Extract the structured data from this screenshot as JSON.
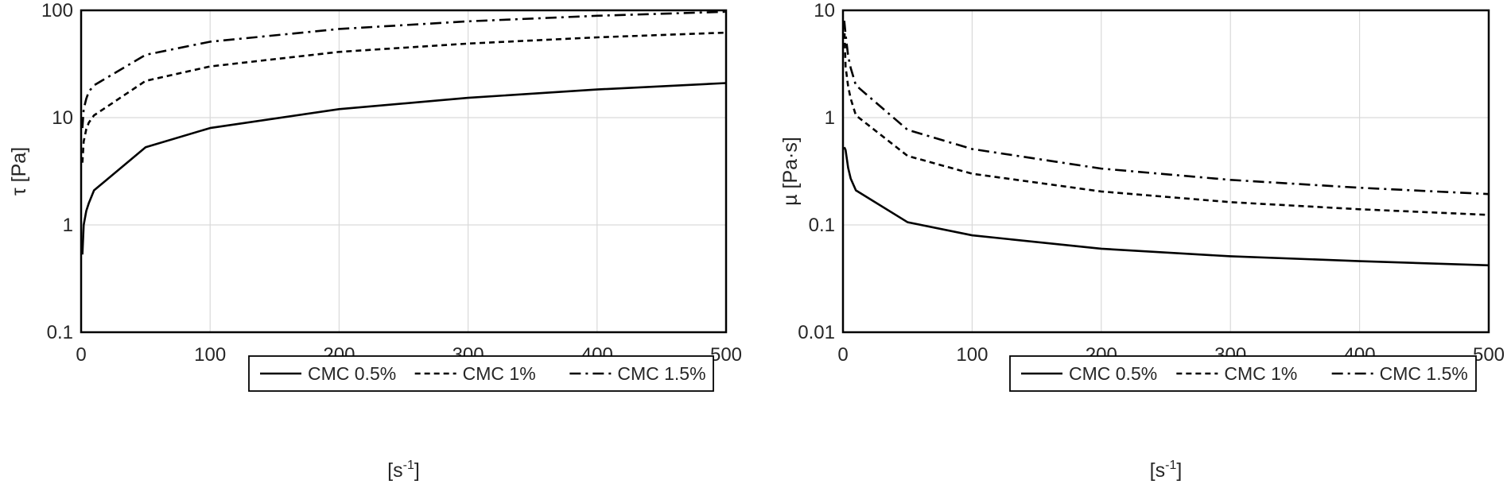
{
  "chart_data": [
    {
      "type": "line",
      "ylabel": "τ [Pa]",
      "xlabel": "[s-1]",
      "xlabel_parts": {
        "base": "[s",
        "sup": "-1",
        "tail": "]"
      },
      "y_scale": "log",
      "xlim": [
        0,
        500
      ],
      "ylim": [
        0.1,
        100
      ],
      "x_ticks": [
        "0",
        "100",
        "200",
        "300",
        "400",
        "500"
      ],
      "y_ticks": [
        "0.1",
        "1",
        "10",
        "100"
      ],
      "grid": true,
      "legend_placement": "bottom-right",
      "series": [
        {
          "name": "CMC 0.5%",
          "line_style": "solid",
          "x": [
            1,
            2,
            4,
            6,
            10,
            50,
            100,
            200,
            300,
            400,
            500
          ],
          "y": [
            0.53,
            1.0,
            1.35,
            1.6,
            2.1,
            5.3,
            8.0,
            12.0,
            15.3,
            18.3,
            21.0
          ]
        },
        {
          "name": "CMC 1%",
          "line_style": "dashed",
          "x": [
            1,
            2,
            4,
            6,
            10,
            50,
            100,
            200,
            300,
            400,
            500
          ],
          "y": [
            3.8,
            6.0,
            7.8,
            9.0,
            10.5,
            22.0,
            30.0,
            41.0,
            49.0,
            56.0,
            62.0
          ]
        },
        {
          "name": "CMC 1.5%",
          "line_style": "dash-dot",
          "x": [
            1,
            2,
            4,
            6,
            10,
            50,
            100,
            200,
            300,
            400,
            500
          ],
          "y": [
            8.0,
            12.0,
            15.0,
            17.5,
            20.0,
            38.5,
            51.0,
            67.0,
            79.0,
            89.0,
            97.0
          ]
        }
      ]
    },
    {
      "type": "line",
      "ylabel": "µ [Pa·s]",
      "xlabel": "[s-1]",
      "xlabel_parts": {
        "base": "[s",
        "sup": "-1",
        "tail": "]"
      },
      "y_scale": "log",
      "xlim": [
        0,
        500
      ],
      "ylim": [
        0.01,
        10
      ],
      "x_ticks": [
        "0",
        "100",
        "200",
        "300",
        "400",
        "500"
      ],
      "y_ticks": [
        "0.01",
        "0.1",
        "1",
        "10"
      ],
      "grid": true,
      "legend_placement": "bottom-right",
      "series": [
        {
          "name": "CMC 0.5%",
          "line_style": "solid",
          "x": [
            1,
            2,
            4,
            6,
            10,
            50,
            100,
            200,
            300,
            400,
            500
          ],
          "y": [
            0.53,
            0.5,
            0.34,
            0.27,
            0.21,
            0.106,
            0.08,
            0.06,
            0.051,
            0.046,
            0.042
          ]
        },
        {
          "name": "CMC 1%",
          "line_style": "dashed",
          "x": [
            1,
            2,
            4,
            6,
            10,
            50,
            100,
            200,
            300,
            400,
            500
          ],
          "y": [
            7.5,
            3.0,
            1.95,
            1.5,
            1.05,
            0.44,
            0.3,
            0.205,
            0.163,
            0.14,
            0.124
          ]
        },
        {
          "name": "CMC 1.5%",
          "line_style": "dash-dot",
          "x": [
            1,
            2,
            4,
            6,
            10,
            50,
            100,
            200,
            300,
            400,
            500
          ],
          "y": [
            8.0,
            6.0,
            3.75,
            2.9,
            2.0,
            0.77,
            0.51,
            0.335,
            0.263,
            0.222,
            0.194
          ]
        }
      ]
    }
  ]
}
